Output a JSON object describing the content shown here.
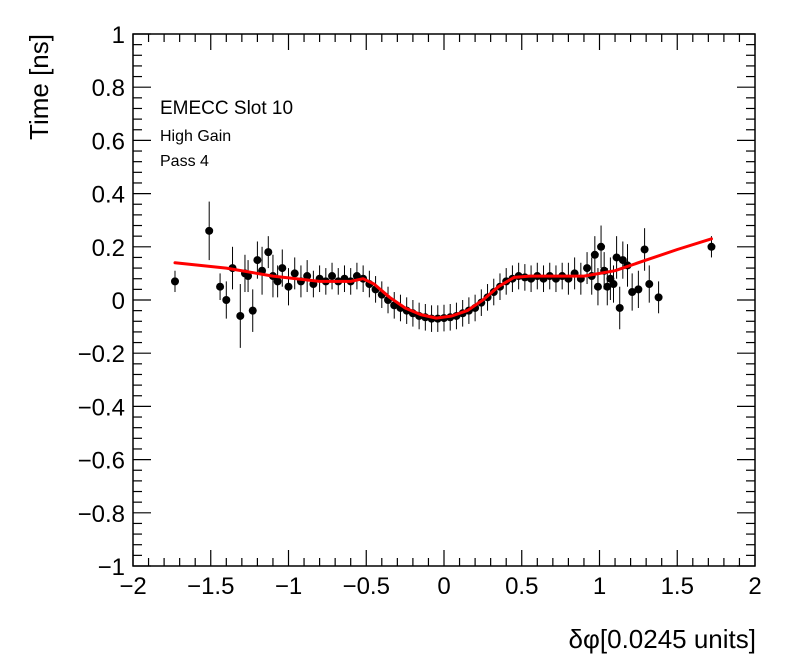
{
  "chart_data": {
    "type": "scatter",
    "title": "",
    "xlabel": "δφ[0.0245 units]",
    "ylabel": "Time [ns]",
    "xlim": [
      -2,
      2
    ],
    "ylim": [
      -1,
      1
    ],
    "x_ticks": [
      -2,
      -1.5,
      -1,
      -0.5,
      0,
      0.5,
      1,
      1.5,
      2
    ],
    "y_ticks": [
      -1,
      -0.8,
      -0.6,
      -0.4,
      -0.2,
      0,
      0.2,
      0.4,
      0.6,
      0.8,
      1
    ],
    "x_tick_labels": [
      "−2",
      "−1.5",
      "−1",
      "−0.5",
      "0",
      "0.5",
      "1",
      "1.5",
      "2"
    ],
    "y_tick_labels": [
      "−1",
      "−0.8",
      "−0.6",
      "−0.4",
      "−0.2",
      "0",
      "0.2",
      "0.4",
      "0.6",
      "0.8",
      "1"
    ],
    "annotations": [
      "EMECC Slot 10",
      "High Gain",
      "Pass 4"
    ],
    "grid": false,
    "colors": {
      "points": "#000000",
      "fit": "#ff0000",
      "frame": "#000000"
    },
    "series": [
      {
        "kind": "points-with-error-bars",
        "points": [
          {
            "x": -1.73,
            "y": 0.07,
            "err": 0.04
          },
          {
            "x": -1.51,
            "y": 0.26,
            "err": 0.11
          },
          {
            "x": -1.44,
            "y": 0.05,
            "err": 0.05
          },
          {
            "x": -1.4,
            "y": 0.0,
            "err": 0.07
          },
          {
            "x": -1.36,
            "y": 0.12,
            "err": 0.08
          },
          {
            "x": -1.31,
            "y": -0.06,
            "err": 0.12
          },
          {
            "x": -1.28,
            "y": 0.1,
            "err": 0.07
          },
          {
            "x": -1.26,
            "y": 0.09,
            "err": 0.06
          },
          {
            "x": -1.23,
            "y": -0.04,
            "err": 0.08
          },
          {
            "x": -1.2,
            "y": 0.15,
            "err": 0.07
          },
          {
            "x": -1.17,
            "y": 0.11,
            "err": 0.09
          },
          {
            "x": -1.13,
            "y": 0.18,
            "err": 0.06
          },
          {
            "x": -1.1,
            "y": 0.09,
            "err": 0.08
          },
          {
            "x": -1.07,
            "y": 0.07,
            "err": 0.06
          },
          {
            "x": -1.04,
            "y": 0.12,
            "err": 0.07
          },
          {
            "x": -1.0,
            "y": 0.05,
            "err": 0.07
          },
          {
            "x": -0.96,
            "y": 0.1,
            "err": 0.06
          },
          {
            "x": -0.92,
            "y": 0.07,
            "err": 0.06
          },
          {
            "x": -0.88,
            "y": 0.09,
            "err": 0.06
          },
          {
            "x": -0.84,
            "y": 0.06,
            "err": 0.05
          },
          {
            "x": -0.8,
            "y": 0.08,
            "err": 0.05
          },
          {
            "x": -0.76,
            "y": 0.07,
            "err": 0.05
          },
          {
            "x": -0.72,
            "y": 0.09,
            "err": 0.05
          },
          {
            "x": -0.68,
            "y": 0.07,
            "err": 0.05
          },
          {
            "x": -0.64,
            "y": 0.08,
            "err": 0.05
          },
          {
            "x": -0.6,
            "y": 0.07,
            "err": 0.05
          },
          {
            "x": -0.56,
            "y": 0.09,
            "err": 0.05
          },
          {
            "x": -0.52,
            "y": 0.08,
            "err": 0.05
          },
          {
            "x": -0.48,
            "y": 0.06,
            "err": 0.05
          },
          {
            "x": -0.44,
            "y": 0.04,
            "err": 0.05
          },
          {
            "x": -0.4,
            "y": 0.02,
            "err": 0.05
          },
          {
            "x": -0.36,
            "y": 0.0,
            "err": 0.05
          },
          {
            "x": -0.32,
            "y": -0.02,
            "err": 0.05
          },
          {
            "x": -0.28,
            "y": -0.03,
            "err": 0.05
          },
          {
            "x": -0.24,
            "y": -0.04,
            "err": 0.05
          },
          {
            "x": -0.2,
            "y": -0.05,
            "err": 0.05
          },
          {
            "x": -0.16,
            "y": -0.06,
            "err": 0.05
          },
          {
            "x": -0.12,
            "y": -0.065,
            "err": 0.05
          },
          {
            "x": -0.08,
            "y": -0.07,
            "err": 0.05
          },
          {
            "x": -0.04,
            "y": -0.07,
            "err": 0.05
          },
          {
            "x": 0.0,
            "y": -0.068,
            "err": 0.05
          },
          {
            "x": 0.04,
            "y": -0.065,
            "err": 0.05
          },
          {
            "x": 0.08,
            "y": -0.06,
            "err": 0.05
          },
          {
            "x": 0.12,
            "y": -0.05,
            "err": 0.05
          },
          {
            "x": 0.16,
            "y": -0.04,
            "err": 0.05
          },
          {
            "x": 0.2,
            "y": -0.03,
            "err": 0.05
          },
          {
            "x": 0.24,
            "y": -0.01,
            "err": 0.05
          },
          {
            "x": 0.28,
            "y": 0.01,
            "err": 0.05
          },
          {
            "x": 0.32,
            "y": 0.03,
            "err": 0.05
          },
          {
            "x": 0.36,
            "y": 0.05,
            "err": 0.05
          },
          {
            "x": 0.4,
            "y": 0.07,
            "err": 0.05
          },
          {
            "x": 0.44,
            "y": 0.08,
            "err": 0.05
          },
          {
            "x": 0.48,
            "y": 0.09,
            "err": 0.05
          },
          {
            "x": 0.52,
            "y": 0.085,
            "err": 0.05
          },
          {
            "x": 0.56,
            "y": 0.08,
            "err": 0.05
          },
          {
            "x": 0.6,
            "y": 0.09,
            "err": 0.05
          },
          {
            "x": 0.64,
            "y": 0.08,
            "err": 0.05
          },
          {
            "x": 0.68,
            "y": 0.09,
            "err": 0.05
          },
          {
            "x": 0.72,
            "y": 0.08,
            "err": 0.05
          },
          {
            "x": 0.76,
            "y": 0.09,
            "err": 0.05
          },
          {
            "x": 0.8,
            "y": 0.08,
            "err": 0.06
          },
          {
            "x": 0.84,
            "y": 0.1,
            "err": 0.06
          },
          {
            "x": 0.88,
            "y": 0.08,
            "err": 0.06
          },
          {
            "x": 0.92,
            "y": 0.12,
            "err": 0.06
          },
          {
            "x": 0.95,
            "y": 0.09,
            "err": 0.07
          },
          {
            "x": 0.97,
            "y": 0.17,
            "err": 0.07
          },
          {
            "x": 0.99,
            "y": 0.05,
            "err": 0.07
          },
          {
            "x": 1.01,
            "y": 0.2,
            "err": 0.08
          },
          {
            "x": 1.03,
            "y": 0.11,
            "err": 0.07
          },
          {
            "x": 1.05,
            "y": 0.05,
            "err": 0.07
          },
          {
            "x": 1.07,
            "y": 0.08,
            "err": 0.08
          },
          {
            "x": 1.09,
            "y": 0.06,
            "err": 0.07
          },
          {
            "x": 1.11,
            "y": 0.16,
            "err": 0.08
          },
          {
            "x": 1.13,
            "y": -0.03,
            "err": 0.08
          },
          {
            "x": 1.15,
            "y": 0.15,
            "err": 0.07
          },
          {
            "x": 1.18,
            "y": 0.13,
            "err": 0.08
          },
          {
            "x": 1.21,
            "y": 0.03,
            "err": 0.07
          },
          {
            "x": 1.25,
            "y": 0.04,
            "err": 0.07
          },
          {
            "x": 1.29,
            "y": 0.19,
            "err": 0.08
          },
          {
            "x": 1.32,
            "y": 0.06,
            "err": 0.07
          },
          {
            "x": 1.38,
            "y": 0.01,
            "err": 0.06
          },
          {
            "x": 1.72,
            "y": 0.2,
            "err": 0.04
          }
        ]
      },
      {
        "kind": "fit-curve",
        "x": [
          -1.73,
          -1.4,
          -1.1,
          -0.8,
          -0.6,
          -0.52,
          -0.45,
          -0.35,
          -0.25,
          -0.15,
          -0.05,
          0.05,
          0.15,
          0.25,
          0.35,
          0.45,
          0.55,
          0.7,
          0.9,
          1.1,
          1.3,
          1.5,
          1.72
        ],
        "y": [
          0.14,
          0.12,
          0.09,
          0.07,
          0.07,
          0.08,
          0.06,
          0.01,
          -0.03,
          -0.055,
          -0.068,
          -0.06,
          -0.04,
          0.0,
          0.05,
          0.085,
          0.09,
          0.09,
          0.09,
          0.11,
          0.15,
          0.19,
          0.23
        ]
      }
    ]
  }
}
